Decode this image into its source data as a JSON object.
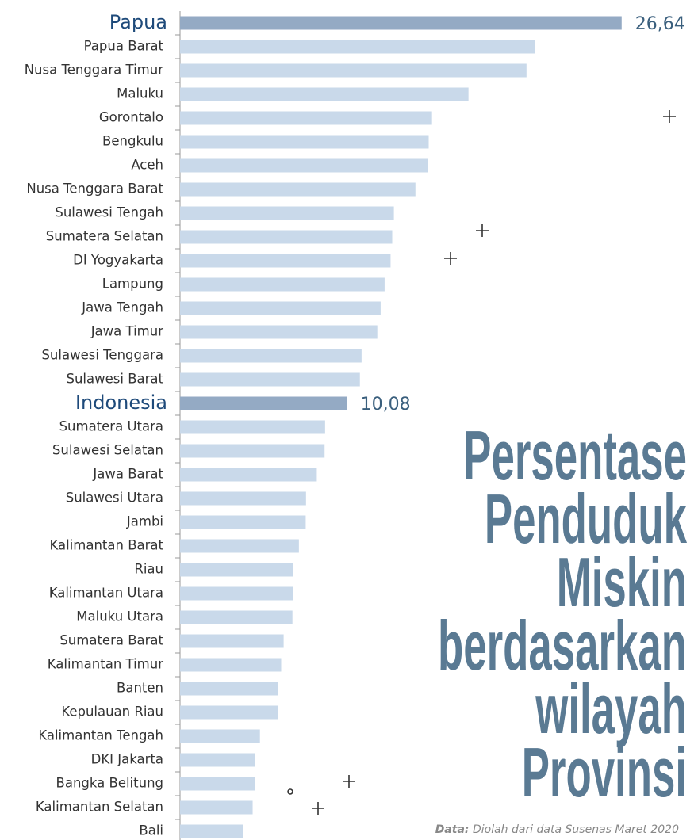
{
  "chart_data": {
    "type": "barh",
    "title": [
      "Persentase",
      "Penduduk",
      "Miskin",
      "berdasarkan",
      "wilayah",
      "Provinsi"
    ],
    "source_label": "Data:",
    "source": "Diolah dari data Susenas Maret 2020",
    "categories": [
      "Papua",
      "Papua Barat",
      "Nusa Tenggara Timur",
      "Maluku",
      "Gorontalo",
      "Bengkulu",
      "Aceh",
      "Nusa Tenggara Barat",
      "Sulawesi Tengah",
      "Sumatera Selatan",
      "DI Yogyakarta",
      "Lampung",
      "Jawa Tengah",
      "Jawa Timur",
      "Sulawesi Tenggara",
      "Sulawesi Barat",
      "Indonesia",
      "Sumatera Utara",
      "Sulawesi Selatan",
      "Jawa Barat",
      "Sulawesi Utara",
      "Jambi",
      "Kalimantan Barat",
      "Riau",
      "Kalimantan Utara",
      "Maluku Utara",
      "Sumatera Barat",
      "Kalimantan Timur",
      "Banten",
      "Kepulauan Riau",
      "Kalimantan Tengah",
      "DKI Jakarta",
      "Bangka Belitung",
      "Kalimantan Selatan",
      "Bali"
    ],
    "values": [
      26.64,
      21.39,
      20.9,
      17.4,
      15.2,
      15.0,
      14.97,
      14.2,
      12.9,
      12.8,
      12.7,
      12.34,
      12.1,
      11.9,
      10.95,
      10.85,
      10.08,
      8.75,
      8.72,
      8.25,
      7.6,
      7.58,
      7.17,
      6.82,
      6.8,
      6.78,
      6.25,
      6.1,
      5.92,
      5.92,
      4.82,
      4.53,
      4.53,
      4.38,
      3.78
    ],
    "value_labels": [
      "26,64",
      null,
      null,
      null,
      null,
      null,
      null,
      null,
      null,
      null,
      null,
      null,
      null,
      null,
      null,
      null,
      "10,08",
      null,
      null,
      null,
      null,
      null,
      null,
      null,
      null,
      null,
      null,
      null,
      null,
      null,
      null,
      null,
      null,
      null,
      null
    ],
    "highlight_indices": [
      0,
      16
    ],
    "color": "#c9d9ea",
    "highlight_color": "#94aac4",
    "xlim": [
      0,
      30
    ]
  }
}
